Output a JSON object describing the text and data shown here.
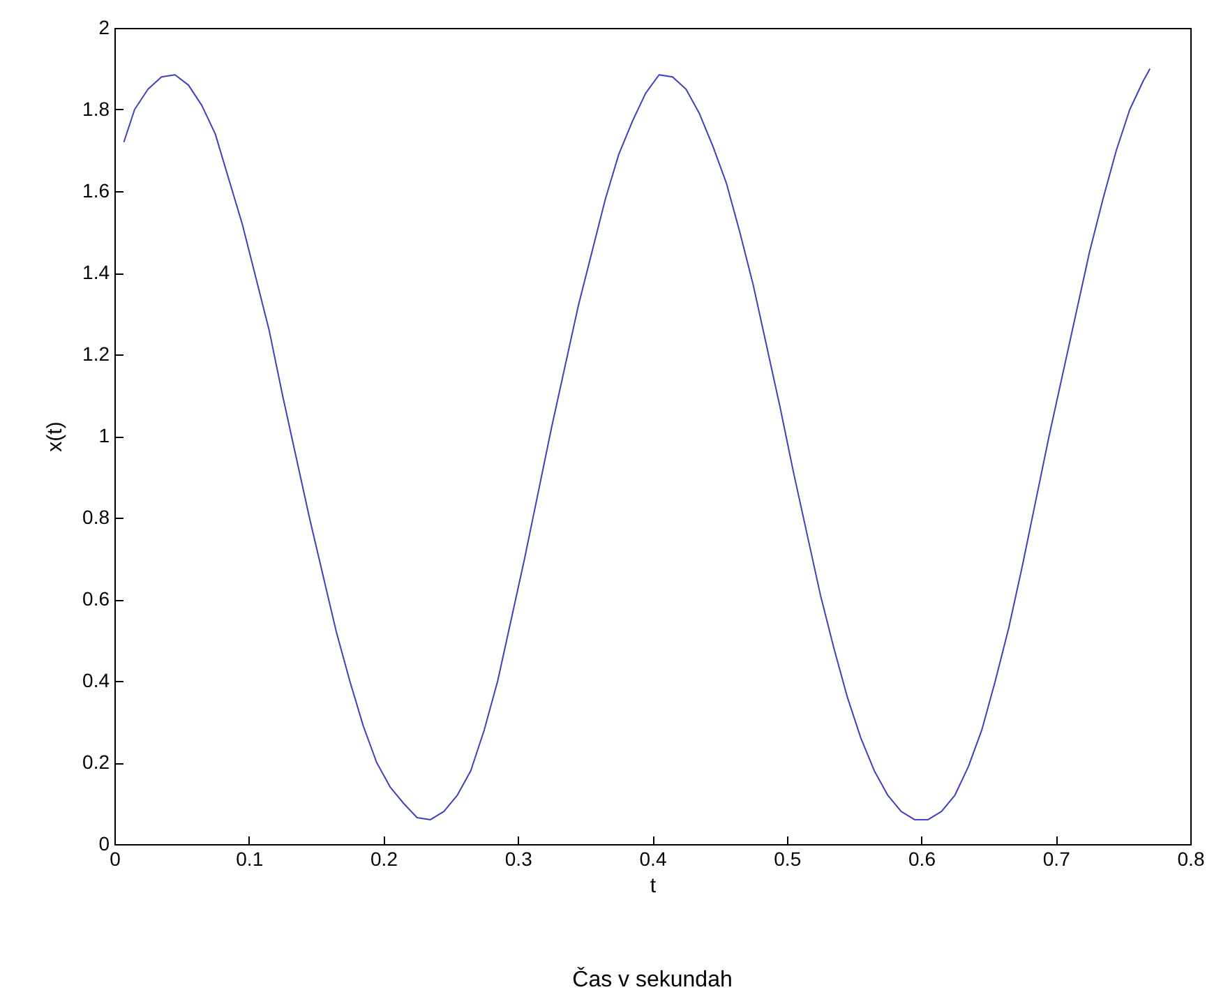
{
  "chart_data": {
    "type": "line",
    "xlabel": "t",
    "ylabel": "x(t)",
    "annotations": [
      "Čas v sekundah"
    ],
    "xlim": [
      0,
      0.8
    ],
    "xticks": [
      0,
      0.1,
      0.2,
      0.3,
      0.4,
      0.5,
      0.6,
      0.7,
      0.8
    ],
    "ylim": [
      0,
      2
    ],
    "yticks": [
      0,
      0.2,
      0.4,
      0.6,
      0.8,
      1,
      1.2,
      1.4,
      1.6,
      1.8,
      2
    ],
    "grid": false,
    "legend": false,
    "marker": "none",
    "line_style": "solid",
    "series": [
      {
        "color": "#3f3fbf",
        "x": [
          0.007,
          0.015,
          0.025,
          0.035,
          0.045,
          0.055,
          0.065,
          0.075,
          0.085,
          0.095,
          0.105,
          0.115,
          0.125,
          0.135,
          0.145,
          0.155,
          0.165,
          0.175,
          0.185,
          0.195,
          0.205,
          0.215,
          0.225,
          0.235,
          0.245,
          0.255,
          0.265,
          0.275,
          0.285,
          0.295,
          0.305,
          0.315,
          0.325,
          0.335,
          0.345,
          0.355,
          0.365,
          0.375,
          0.385,
          0.395,
          0.405,
          0.415,
          0.425,
          0.435,
          0.445,
          0.455,
          0.465,
          0.475,
          0.485,
          0.495,
          0.505,
          0.515,
          0.525,
          0.535,
          0.545,
          0.555,
          0.565,
          0.575,
          0.585,
          0.595,
          0.605,
          0.615,
          0.625,
          0.635,
          0.645,
          0.655,
          0.665,
          0.675,
          0.685,
          0.695,
          0.705,
          0.715,
          0.725,
          0.735,
          0.745,
          0.755,
          0.765,
          0.77
        ],
        "values": [
          1.72,
          1.8,
          1.85,
          1.88,
          1.885,
          1.86,
          1.81,
          1.74,
          1.63,
          1.52,
          1.39,
          1.26,
          1.1,
          0.95,
          0.8,
          0.66,
          0.52,
          0.4,
          0.29,
          0.2,
          0.14,
          0.1,
          0.065,
          0.06,
          0.08,
          0.12,
          0.18,
          0.28,
          0.4,
          0.55,
          0.7,
          0.86,
          1.02,
          1.17,
          1.32,
          1.45,
          1.58,
          1.69,
          1.77,
          1.84,
          1.885,
          1.88,
          1.85,
          1.79,
          1.71,
          1.62,
          1.5,
          1.37,
          1.22,
          1.07,
          0.91,
          0.76,
          0.61,
          0.48,
          0.36,
          0.26,
          0.18,
          0.12,
          0.08,
          0.06,
          0.06,
          0.08,
          0.12,
          0.19,
          0.28,
          0.4,
          0.53,
          0.68,
          0.84,
          1.0,
          1.15,
          1.3,
          1.45,
          1.58,
          1.7,
          1.8,
          1.87,
          1.9
        ]
      }
    ]
  }
}
